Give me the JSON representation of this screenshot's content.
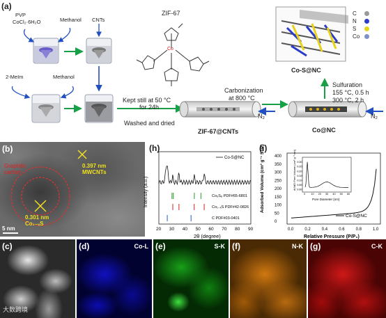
{
  "figure": {
    "panel_a": {
      "label": "(a)",
      "pvp": "PVP",
      "cocl2": "CoCl₂·6H₂O",
      "methanol_top": "Methanol",
      "cnts": "CNTs",
      "two_meim": "2-MeIm",
      "methanol_bottom": "Methanol",
      "zif67_title": "ZIF-67",
      "co_atom": "Co",
      "kept_still": "Kept still at 50 °C",
      "for_24h": "for 24h",
      "washed_dried": "Washed and dried",
      "carbonization": "Carbonization",
      "at_800": "at 800 °C",
      "zif_cnts": "ZIF-67@CNTs",
      "n2_left": "N₂",
      "co_nc": "Co@NC",
      "n2_right": "N₂",
      "sulfuration": "Sulfuration",
      "cond1": "155 °C, 0.5 h",
      "cond2": "300 °C, 2 h",
      "cosnc": "Co-S@NC",
      "legend": [
        {
          "symbol": "C",
          "color": "#9a9a9a"
        },
        {
          "symbol": "N",
          "color": "#2a3cc8"
        },
        {
          "symbol": "S",
          "color": "#e8d21a"
        },
        {
          "symbol": "Co",
          "color": "#8090c8"
        }
      ]
    },
    "panel_b": {
      "label": "(b)",
      "graphitic": "Graphitic",
      "carbon": "carbon",
      "d1": "0.397 nm",
      "d1_sub": "MWCNTs",
      "d2": "0.301 nm",
      "d2_sub": "Co₁₋ₓS",
      "scale": "5 nm"
    },
    "panel_h": {
      "label": "(h)",
      "ylabel": "Intensity (a.u.)",
      "xlabel": "2θ (degree)",
      "legend": "Co-S@NC",
      "pdf1": "Co₉S₈ PDF#65-6801",
      "pdf2": "Co₁₋ₓS PDF#42-0826",
      "pdf3": "C PDF#03-0401",
      "pdf_colors": [
        "#2a9a2a",
        "#d62020",
        "#2060c8"
      ],
      "ticks": [
        "20",
        "30",
        "40",
        "50",
        "60",
        "70",
        "80",
        "90"
      ]
    },
    "panel_i": {
      "label": "(i)",
      "ylabel": "Adsorbed Volume (cm³ g⁻¹ STP)",
      "xlabel": "Relative Pressure (P/P₀)",
      "legend": "Co-S@NC",
      "yticks": [
        "0",
        "50",
        "100",
        "150",
        "200",
        "250",
        "300",
        "350",
        "400"
      ],
      "xticks": [
        "0.0",
        "0.2",
        "0.4",
        "0.6",
        "0.8",
        "1.0"
      ],
      "inset_ylabel": "dV/dD Pore Volume (cm³ g⁻¹ nm)",
      "inset_xlabel": "Pore Diameter (nm)",
      "inset_yticks": [
        "0.000",
        "0.005",
        "0.010",
        "0.015",
        "0.020",
        "0.025",
        "0.030"
      ],
      "inset_xticks": [
        "0",
        "10",
        "20",
        "30",
        "40",
        "50",
        "60"
      ]
    },
    "panel_c": {
      "label": "(c)"
    },
    "panel_d": {
      "label": "(d)",
      "element": "Co-L",
      "color": "#1010d0"
    },
    "panel_e": {
      "label": "(e)",
      "element": "S-K",
      "color": "#20b020"
    },
    "panel_f": {
      "label": "(f)",
      "element": "N-K",
      "color": "#e08010"
    },
    "panel_g": {
      "label": "(g)",
      "element": "C-K",
      "color": "#d01010"
    },
    "watermark": "大数跨境"
  }
}
